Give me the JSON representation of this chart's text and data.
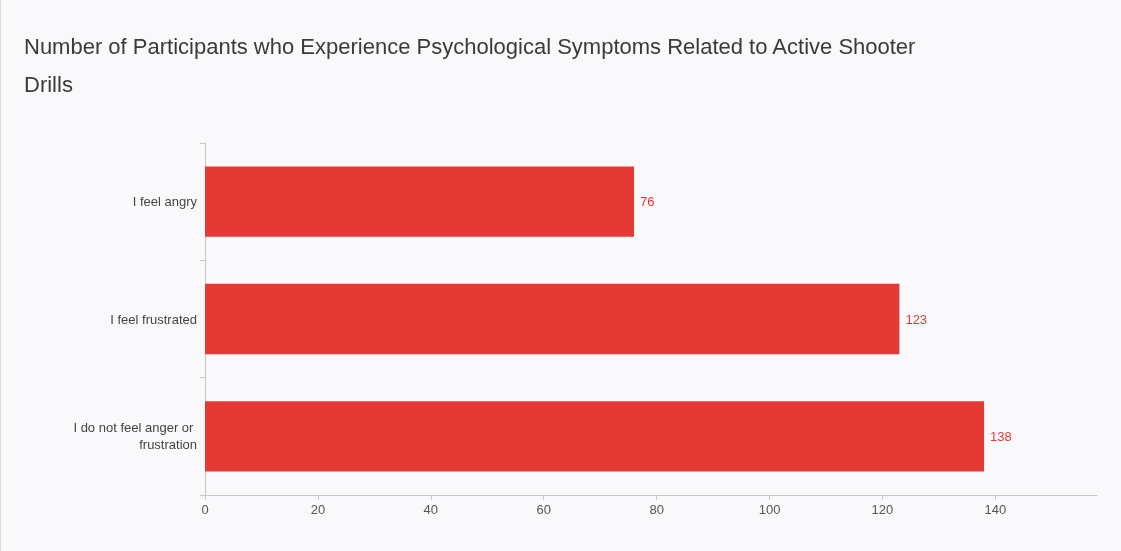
{
  "chart_data": {
    "type": "bar",
    "orientation": "horizontal",
    "title": "Number of Participants who Experience Psychological Symptoms Related to Active Shooter Drills",
    "categories": [
      "I feel angry",
      "I feel frustrated",
      "I do not feel anger or frustration"
    ],
    "values": [
      76,
      123,
      138
    ],
    "color": "#e53935",
    "data_labels": true,
    "xlim": [
      0,
      158
    ],
    "xticks": [
      0,
      20,
      40,
      60,
      80,
      100,
      120,
      140
    ],
    "grid": false
  }
}
